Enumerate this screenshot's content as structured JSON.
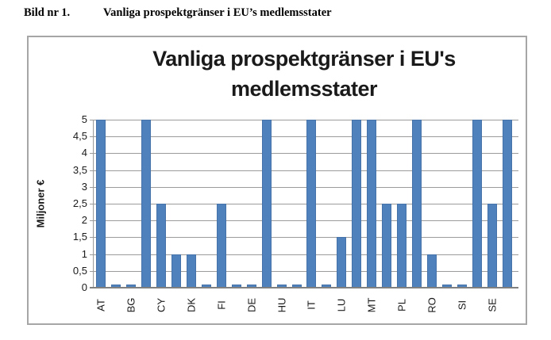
{
  "caption": {
    "prefix": "Bild nr 1.",
    "text": "Vanliga prospektgränser i EU’s medlemsstater"
  },
  "chart": {
    "title_lines": [
      "Vanliga prospektgränser i EU's",
      "medlemsstater"
    ]
  },
  "chart_data": {
    "type": "bar",
    "title": "Vanliga prospektgränser i EU's medlemsstater",
    "xlabel": "",
    "ylabel": "Miljoner €",
    "ylim": [
      0,
      5
    ],
    "ytick_step": 0.5,
    "ytick_labels": [
      "5",
      "4,5",
      "4",
      "3,5",
      "3",
      "2,5",
      "2",
      "1,5",
      "1",
      "0,5",
      "0"
    ],
    "grid": true,
    "legend_position": "none",
    "bars": [
      {
        "label": "AT",
        "value": 5
      },
      {
        "label": "",
        "value": 0.1
      },
      {
        "label": "BG",
        "value": 0.1
      },
      {
        "label": "",
        "value": 5
      },
      {
        "label": "CY",
        "value": 2.5
      },
      {
        "label": "",
        "value": 1
      },
      {
        "label": "DK",
        "value": 1
      },
      {
        "label": "",
        "value": 0.1
      },
      {
        "label": "FI",
        "value": 2.5
      },
      {
        "label": "",
        "value": 0.1
      },
      {
        "label": "DE",
        "value": 0.1
      },
      {
        "label": "",
        "value": 5
      },
      {
        "label": "HU",
        "value": 0.1
      },
      {
        "label": "",
        "value": 0.1
      },
      {
        "label": "IT",
        "value": 5
      },
      {
        "label": "",
        "value": 0.1
      },
      {
        "label": "LU",
        "value": 1.5
      },
      {
        "label": "",
        "value": 5
      },
      {
        "label": "MT",
        "value": 5
      },
      {
        "label": "",
        "value": 2.5
      },
      {
        "label": "PL",
        "value": 2.5
      },
      {
        "label": "",
        "value": 5
      },
      {
        "label": "RO",
        "value": 1
      },
      {
        "label": "",
        "value": 0.1
      },
      {
        "label": "SI",
        "value": 0.1
      },
      {
        "label": "",
        "value": 5
      },
      {
        "label": "SE",
        "value": 2.5
      },
      {
        "label": "",
        "value": 5
      }
    ],
    "colors": {
      "bar": "#4f81bd",
      "gridline": "#9b9b9b",
      "axis": "#808080",
      "frame": "#a6a6a6",
      "text": "#1a1a1a"
    }
  }
}
